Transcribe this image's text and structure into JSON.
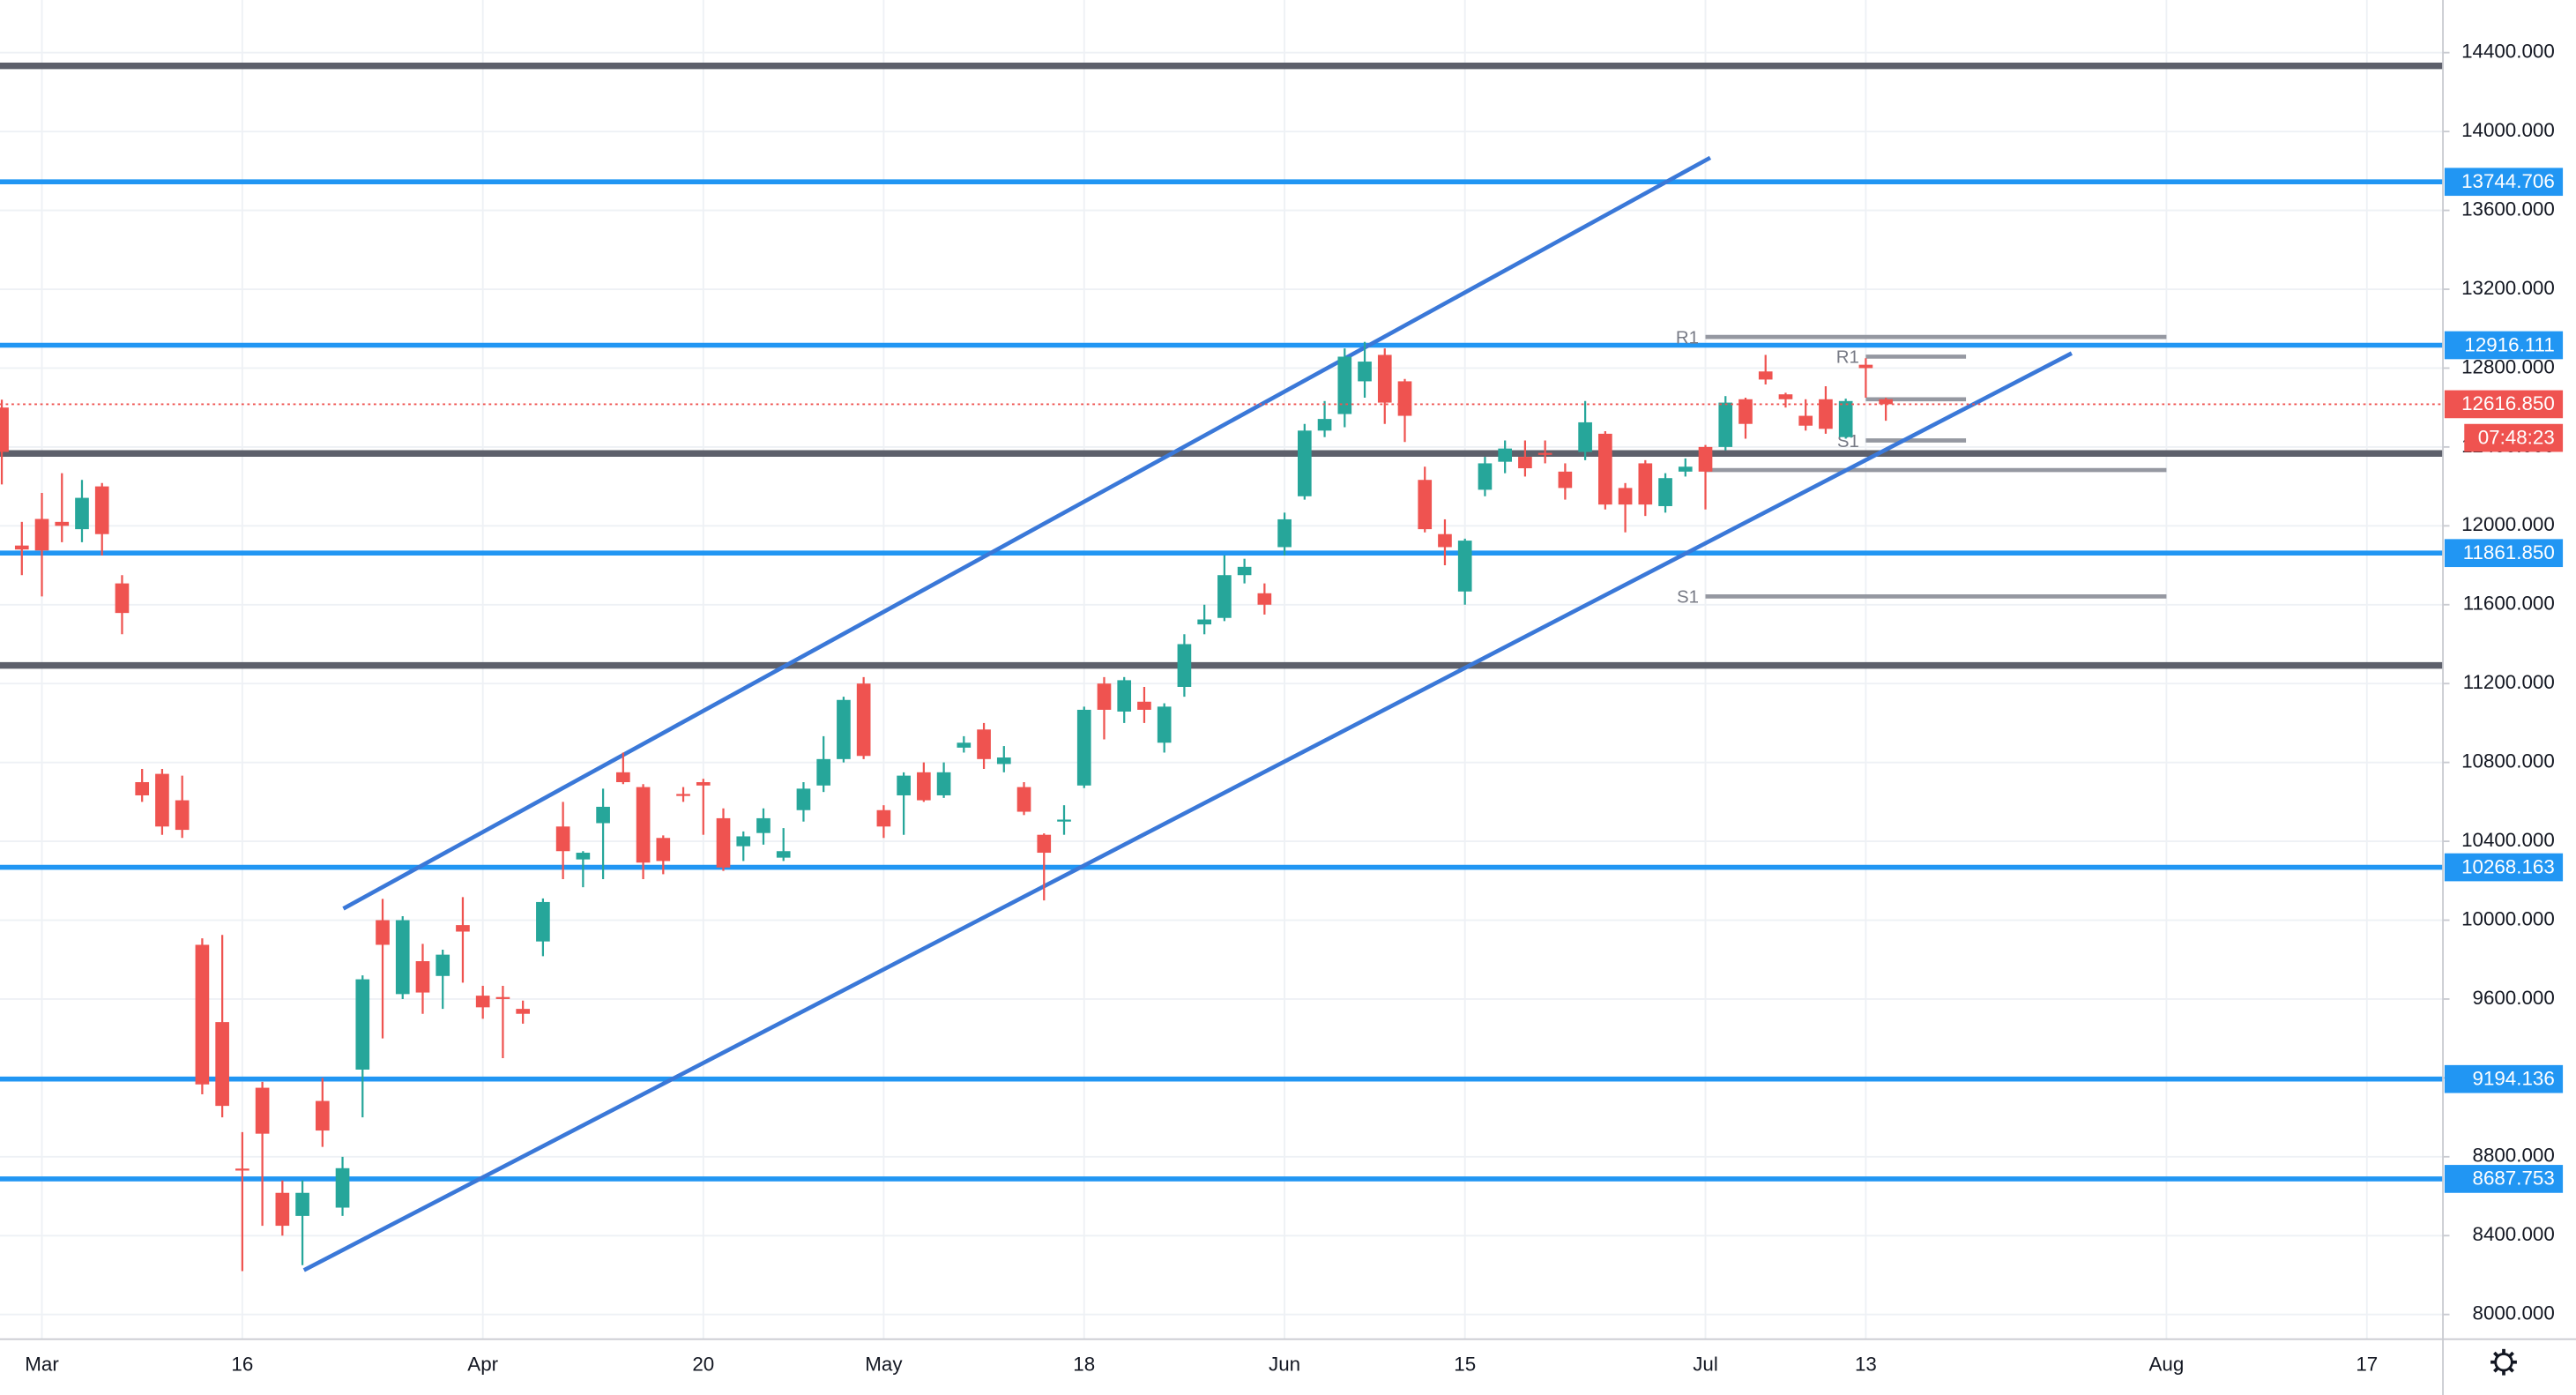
{
  "chart_data": {
    "type": "candlestick",
    "categories": [
      null,
      null,
      "Mar",
      null,
      null,
      null,
      null,
      null,
      null,
      null,
      null,
      null,
      "16",
      null,
      null,
      null,
      null,
      null,
      null,
      null,
      null,
      null,
      null,
      null,
      "Apr",
      null,
      null,
      null,
      null,
      null,
      null,
      null,
      null,
      null,
      null,
      "20",
      null,
      null,
      null,
      null,
      null,
      null,
      null,
      null,
      "May",
      null,
      null,
      null,
      null,
      null,
      null,
      null,
      null,
      null,
      "18",
      null,
      null,
      null,
      null,
      null,
      null,
      null,
      null,
      null,
      "Jun",
      null,
      null,
      null,
      null,
      null,
      null,
      null,
      null,
      "15",
      null,
      null,
      null,
      null,
      null,
      null,
      null,
      null,
      null,
      null,
      null,
      "Jul",
      null,
      null,
      null,
      null,
      null,
      null,
      null,
      "13",
      null,
      null,
      null,
      null,
      null,
      null,
      null,
      null,
      null,
      null,
      null,
      null,
      null,
      null,
      "Aug",
      null,
      null,
      null,
      null,
      null,
      null,
      null,
      null,
      null,
      "17",
      null,
      null,
      null
    ],
    "open": [
      12600,
      11900,
      12035,
      12020,
      11983,
      12200,
      11708,
      10700,
      10742,
      10608,
      9875,
      9483,
      8740,
      9150,
      8617,
      8500,
      9083,
      8542,
      9242,
      10000,
      9625,
      9792,
      9717,
      9975,
      9617,
      9610,
      9550,
      9892,
      10475,
      10308,
      10492,
      10750,
      10675,
      10417,
      10640,
      10700,
      10517,
      10375,
      10442,
      10317,
      10558,
      10683,
      10817,
      11200,
      10558,
      10633,
      10750,
      10633,
      10875,
      10967,
      10792,
      10675,
      10433,
      10500,
      10683,
      11200,
      11058,
      11108,
      10900,
      11183,
      11500,
      11533,
      11750,
      11658,
      11892,
      12150,
      12483,
      12567,
      12733,
      12867,
      12733,
      12233,
      11958,
      11667,
      12183,
      12325,
      12350,
      12370,
      12275,
      12375,
      12467,
      12192,
      12317,
      12100,
      12275,
      12400,
      12400,
      12642,
      12783,
      12667,
      12558,
      12642,
      12450,
      12817,
      12642,
      null,
      null,
      null,
      null,
      null,
      null,
      null,
      null,
      null,
      null,
      null,
      null,
      null,
      null,
      null,
      null,
      null,
      null,
      null,
      null,
      null,
      null,
      null,
      null,
      null,
      null,
      null
    ],
    "high": [
      12640,
      12020,
      12167,
      12267,
      12233,
      12217,
      11750,
      10767,
      10767,
      10733,
      9908,
      9925,
      8925,
      9180,
      8680,
      8680,
      9200,
      8800,
      9720,
      10108,
      10020,
      9880,
      9850,
      10117,
      9667,
      9667,
      9592,
      10110,
      10600,
      10350,
      10667,
      10850,
      10690,
      10430,
      10675,
      10717,
      10567,
      10450,
      10567,
      10467,
      10700,
      10933,
      11133,
      11233,
      10583,
      10750,
      10800,
      10800,
      10933,
      11000,
      10883,
      10700,
      10440,
      10583,
      11083,
      11233,
      11233,
      11183,
      11100,
      11450,
      11600,
      11850,
      11833,
      11708,
      12067,
      12517,
      12633,
      12900,
      12933,
      12900,
      12745,
      12300,
      12033,
      11935,
      12350,
      12433,
      12433,
      12433,
      12317,
      12633,
      12480,
      12217,
      12333,
      12267,
      12342,
      12410,
      12658,
      12650,
      12867,
      12675,
      12642,
      12708,
      12645,
      12850,
      12650,
      null,
      null,
      null,
      null,
      null,
      null,
      null,
      null,
      null,
      null,
      null,
      null,
      null,
      null,
      null,
      null,
      null,
      null,
      null,
      null,
      null,
      null,
      null,
      null,
      null,
      null,
      null
    ],
    "low": [
      12210,
      11750,
      11642,
      11917,
      11917,
      11850,
      11450,
      10600,
      10433,
      10417,
      9117,
      9000,
      8220,
      8450,
      8400,
      8250,
      8850,
      8500,
      9000,
      9400,
      9600,
      9525,
      9550,
      9683,
      9500,
      9300,
      9475,
      9817,
      10208,
      10167,
      10208,
      10690,
      10208,
      10233,
      10600,
      10433,
      10250,
      10300,
      10383,
      10300,
      10500,
      10650,
      10800,
      10817,
      10417,
      10433,
      10600,
      10620,
      10850,
      10767,
      10750,
      10533,
      10100,
      10433,
      10670,
      10917,
      11000,
      11000,
      10850,
      11133,
      11450,
      11517,
      11708,
      11550,
      11850,
      12133,
      12450,
      12500,
      12650,
      12517,
      12425,
      11967,
      11800,
      11600,
      12150,
      12267,
      12250,
      12317,
      12133,
      12333,
      12083,
      11967,
      12050,
      12067,
      12250,
      12083,
      12383,
      12442,
      12717,
      12600,
      12483,
      12467,
      12442,
      12650,
      12533,
      null,
      null,
      null,
      null,
      null,
      null,
      null,
      null,
      null,
      null,
      null,
      null,
      null,
      null,
      null,
      null,
      null,
      null,
      null,
      null,
      null,
      null,
      null,
      null,
      null,
      null,
      null
    ],
    "close": [
      12375,
      11880,
      11875,
      12000,
      12142,
      11958,
      11558,
      10633,
      10475,
      10458,
      9167,
      9058,
      8735,
      8917,
      8450,
      8617,
      8933,
      8742,
      9700,
      9875,
      10000,
      9633,
      9825,
      9942,
      9558,
      9605,
      9525,
      10092,
      10350,
      10342,
      10575,
      10700,
      10292,
      10300,
      10630,
      10683,
      10267,
      10425,
      10517,
      10350,
      10667,
      10817,
      11117,
      10833,
      10475,
      10733,
      10608,
      10750,
      10900,
      10817,
      10825,
      10550,
      10342,
      10510,
      11067,
      11067,
      11217,
      11067,
      11083,
      11400,
      11525,
      11750,
      11792,
      11600,
      12033,
      12483,
      12542,
      12858,
      12833,
      12625,
      12558,
      11983,
      11892,
      11925,
      12317,
      12392,
      12292,
      12365,
      12192,
      12525,
      12108,
      12108,
      12108,
      12242,
      12300,
      12275,
      12625,
      12517,
      12742,
      12642,
      12508,
      12492,
      12633,
      12800,
      12616.85,
      null,
      null,
      null,
      null,
      null,
      null,
      null,
      null,
      null,
      null,
      null,
      null,
      null,
      null,
      null,
      null,
      null,
      null,
      null,
      null,
      null,
      null,
      null,
      null,
      null,
      null,
      null
    ],
    "up_color": "#26a69a",
    "down_color": "#ef5350",
    "ylim": [
      7875,
      14667
    ],
    "yticks": [
      {
        "value": 8000,
        "label": "8000.000"
      },
      {
        "value": 8400,
        "label": "8400.000"
      },
      {
        "value": 8800,
        "label": "8800.000"
      },
      {
        "value": 9200,
        "label": "9200.000"
      },
      {
        "value": 9600,
        "label": "9600.000"
      },
      {
        "value": 10000,
        "label": "10000.000"
      },
      {
        "value": 10400,
        "label": "10400.000"
      },
      {
        "value": 10800,
        "label": "10800.000"
      },
      {
        "value": 11200,
        "label": "11200.000"
      },
      {
        "value": 11600,
        "label": "11600.000"
      },
      {
        "value": 12000,
        "label": "12000.000"
      },
      {
        "value": 12400,
        "label": "12400.000"
      },
      {
        "value": 12800,
        "label": "12800.000"
      },
      {
        "value": 13200,
        "label": "13200.000"
      },
      {
        "value": 13600,
        "label": "13600.000"
      },
      {
        "value": 14000,
        "label": "14000.000"
      },
      {
        "value": 14400,
        "label": "14400.000"
      }
    ],
    "grid": true,
    "levels": [
      {
        "value": 14333,
        "color": "#5d606b"
      },
      {
        "value": 13744.706,
        "label": "13744.706",
        "color": "#2196f3"
      },
      {
        "value": 12916.111,
        "label": "12916.111",
        "color": "#2196f3"
      },
      {
        "value": 12367,
        "color": "#5d606b"
      },
      {
        "value": 11861.85,
        "label": "11861.850",
        "color": "#2196f3"
      },
      {
        "value": 11292,
        "color": "#5d606b"
      },
      {
        "value": 10268.163,
        "label": "10268.163",
        "color": "#2196f3"
      },
      {
        "value": 9194.136,
        "label": "9194.136",
        "color": "#2196f3"
      },
      {
        "value": 8687.753,
        "label": "8687.753",
        "color": "#2196f3"
      }
    ],
    "pivots": [
      {
        "from": 85,
        "to": 108,
        "levels": [
          {
            "value": 12958,
            "label": "R1"
          },
          {
            "value": 12283
          },
          {
            "value": 11642,
            "label": "S1"
          }
        ]
      },
      {
        "from": 93,
        "to": 98,
        "levels": [
          {
            "value": 12858,
            "label": "R1"
          },
          {
            "value": 12642
          },
          {
            "value": 12433,
            "label": "S1"
          }
        ]
      }
    ],
    "last_price_label": "12616.850",
    "countdown": "07:48:23"
  }
}
